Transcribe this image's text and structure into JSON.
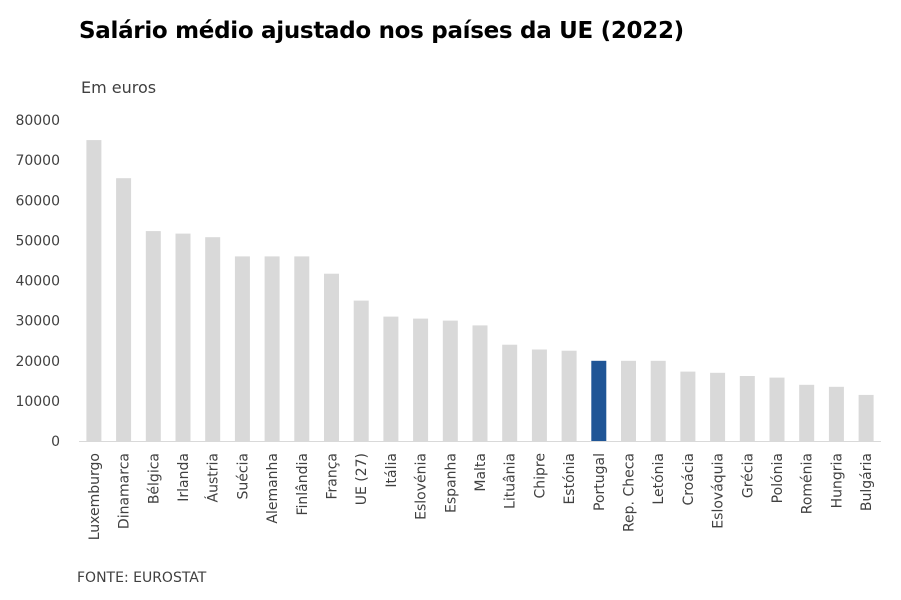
{
  "chart_data": {
    "type": "bar",
    "title": "Salário médio ajustado nos países da UE (2022)",
    "subtitle": "Em euros",
    "source": "FONTE: EUROSTAT",
    "ylim": [
      0,
      80000
    ],
    "yticks": [
      0,
      10000,
      20000,
      30000,
      40000,
      50000,
      60000,
      70000,
      80000
    ],
    "grid": false,
    "bar_color": "#d9d9d9",
    "highlight_color": "#1f5596",
    "highlight": "Portugal",
    "categories": [
      "Luxemburgo",
      "Dinamarca",
      "Bélgica",
      "Irlanda",
      "Áustria",
      "Suécia",
      "Alemanha",
      "Finlândia",
      "França",
      "UE (27)",
      "Itália",
      "Eslovénia",
      "Espanha",
      "Malta",
      "Lituânia",
      "Chipre",
      "Estónia",
      "Portugal",
      "Rep. Checa",
      "Letónia",
      "Croácia",
      "Eslováquia",
      "Grécia",
      "Polónia",
      "Roménia",
      "Hungria",
      "Bulgária"
    ],
    "values": [
      75000,
      65500,
      52300,
      51700,
      50800,
      46000,
      46000,
      46000,
      41700,
      35000,
      31000,
      30500,
      30000,
      28800,
      24000,
      22800,
      22500,
      20000,
      20000,
      20000,
      17300,
      17000,
      16200,
      15800,
      14000,
      13500,
      11500
    ]
  }
}
